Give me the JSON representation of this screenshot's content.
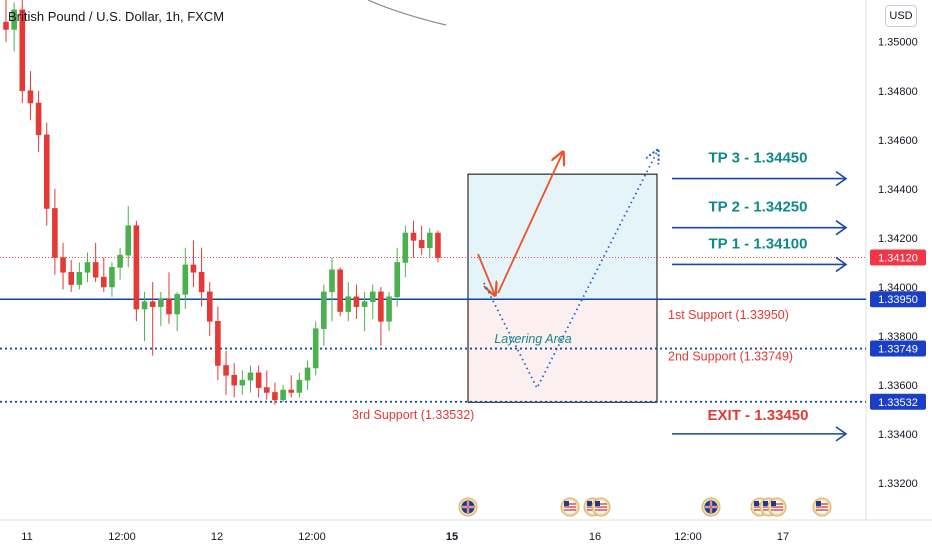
{
  "header": {
    "title": "British Pound / U.S. Dollar, 1h, FXCM",
    "currency_button": "USD"
  },
  "colors": {
    "up": "#4caf50",
    "down": "#e53935",
    "support_line": "#0d47a1",
    "arrow_blue": "#1a47a8",
    "tp_text": "#0f8a8a",
    "exit_text": "#e53935",
    "price_tag": "#1a3fc4",
    "last_price_tag": "#f23645"
  },
  "chart_data": {
    "type": "candlestick",
    "y_ticks": [
      "1.35000",
      "1.34800",
      "1.34600",
      "1.34400",
      "1.34200",
      "1.34000",
      "1.33800",
      "1.33600",
      "1.33400",
      "1.33200"
    ],
    "ylim": [
      1.3305,
      1.3517
    ],
    "x_ticks": [
      {
        "label": "11",
        "bold": false
      },
      {
        "label": "12:00",
        "bold": false
      },
      {
        "label": "12",
        "bold": false
      },
      {
        "label": "12:00",
        "bold": false
      },
      {
        "label": "15",
        "bold": true
      },
      {
        "label": "16",
        "bold": false
      },
      {
        "label": "12:00",
        "bold": false
      },
      {
        "label": "17",
        "bold": false
      }
    ],
    "price_tags": [
      {
        "label": "1.34120",
        "value": 1.3412,
        "kind": "last"
      },
      {
        "label": "1.33950",
        "value": 1.3395,
        "kind": "level"
      },
      {
        "label": "1.33749",
        "value": 1.33749,
        "kind": "level"
      },
      {
        "label": "1.33532",
        "value": 1.33532,
        "kind": "level"
      }
    ],
    "levels": [
      {
        "value": 1.3395,
        "style": "solid"
      },
      {
        "value": 1.33749,
        "style": "dotted"
      },
      {
        "value": 1.33532,
        "style": "dotted"
      },
      {
        "value": 1.3412,
        "style": "last-price"
      }
    ],
    "targets": [
      {
        "label": "TP 3 - 1.34450",
        "value": 1.3445,
        "kind": "tp"
      },
      {
        "label": "TP 2 - 1.34250",
        "value": 1.3425,
        "kind": "tp"
      },
      {
        "label": "TP 1 - 1.34100",
        "value": 1.341,
        "kind": "tp"
      },
      {
        "label": "EXIT - 1.33450",
        "value": 1.3345,
        "kind": "exit"
      }
    ],
    "support_labels": [
      {
        "label": "1st Support (1.33950)",
        "value": 1.3395
      },
      {
        "label": "2nd Support (1.33749)",
        "value": 1.33749
      },
      {
        "label": "3rd Support (1.33532)",
        "value": 1.33532
      }
    ],
    "zone": {
      "label": "Layering Area",
      "top": 1.3446,
      "mid": 1.3395,
      "bottom": 1.3353
    },
    "candles": [
      {
        "o": 1.3508,
        "h": 1.3518,
        "l": 1.35,
        "c": 1.3505
      },
      {
        "o": 1.3505,
        "h": 1.3516,
        "l": 1.3496,
        "c": 1.3513
      },
      {
        "o": 1.3513,
        "h": 1.352,
        "l": 1.3475,
        "c": 1.348
      },
      {
        "o": 1.348,
        "h": 1.3488,
        "l": 1.3468,
        "c": 1.3475
      },
      {
        "o": 1.3475,
        "h": 1.348,
        "l": 1.3455,
        "c": 1.3462
      },
      {
        "o": 1.3462,
        "h": 1.3467,
        "l": 1.3425,
        "c": 1.3432
      },
      {
        "o": 1.3432,
        "h": 1.344,
        "l": 1.3405,
        "c": 1.3412
      },
      {
        "o": 1.3412,
        "h": 1.3418,
        "l": 1.3399,
        "c": 1.3406
      },
      {
        "o": 1.3406,
        "h": 1.3411,
        "l": 1.3398,
        "c": 1.3401
      },
      {
        "o": 1.3401,
        "h": 1.341,
        "l": 1.3399,
        "c": 1.3406
      },
      {
        "o": 1.3406,
        "h": 1.3414,
        "l": 1.3402,
        "c": 1.341
      },
      {
        "o": 1.341,
        "h": 1.3418,
        "l": 1.3402,
        "c": 1.3404
      },
      {
        "o": 1.3404,
        "h": 1.3412,
        "l": 1.3398,
        "c": 1.34
      },
      {
        "o": 1.34,
        "h": 1.341,
        "l": 1.3396,
        "c": 1.3408
      },
      {
        "o": 1.3408,
        "h": 1.3416,
        "l": 1.3403,
        "c": 1.3413
      },
      {
        "o": 1.3413,
        "h": 1.3433,
        "l": 1.3408,
        "c": 1.3425
      },
      {
        "o": 1.3425,
        "h": 1.3427,
        "l": 1.3386,
        "c": 1.3391
      },
      {
        "o": 1.3391,
        "h": 1.3398,
        "l": 1.3378,
        "c": 1.3394
      },
      {
        "o": 1.3394,
        "h": 1.3402,
        "l": 1.3372,
        "c": 1.3392
      },
      {
        "o": 1.3392,
        "h": 1.3398,
        "l": 1.3384,
        "c": 1.3395
      },
      {
        "o": 1.3395,
        "h": 1.3406,
        "l": 1.3385,
        "c": 1.3389
      },
      {
        "o": 1.3389,
        "h": 1.3398,
        "l": 1.3382,
        "c": 1.3397
      },
      {
        "o": 1.3397,
        "h": 1.3416,
        "l": 1.3391,
        "c": 1.3409
      },
      {
        "o": 1.3409,
        "h": 1.3419,
        "l": 1.34,
        "c": 1.3406
      },
      {
        "o": 1.3406,
        "h": 1.3416,
        "l": 1.3392,
        "c": 1.3398
      },
      {
        "o": 1.3398,
        "h": 1.3402,
        "l": 1.338,
        "c": 1.3386
      },
      {
        "o": 1.3386,
        "h": 1.3392,
        "l": 1.3362,
        "c": 1.3368
      },
      {
        "o": 1.3368,
        "h": 1.3374,
        "l": 1.3356,
        "c": 1.3364
      },
      {
        "o": 1.3364,
        "h": 1.3369,
        "l": 1.3355,
        "c": 1.336
      },
      {
        "o": 1.336,
        "h": 1.3366,
        "l": 1.3356,
        "c": 1.3362
      },
      {
        "o": 1.3362,
        "h": 1.3368,
        "l": 1.3357,
        "c": 1.3365
      },
      {
        "o": 1.3365,
        "h": 1.3368,
        "l": 1.3355,
        "c": 1.3359
      },
      {
        "o": 1.3359,
        "h": 1.3366,
        "l": 1.3354,
        "c": 1.3357
      },
      {
        "o": 1.3357,
        "h": 1.3361,
        "l": 1.3352,
        "c": 1.3354
      },
      {
        "o": 1.3354,
        "h": 1.336,
        "l": 1.3353,
        "c": 1.3358
      },
      {
        "o": 1.3358,
        "h": 1.3364,
        "l": 1.3355,
        "c": 1.3357
      },
      {
        "o": 1.3357,
        "h": 1.3365,
        "l": 1.3355,
        "c": 1.3362
      },
      {
        "o": 1.3362,
        "h": 1.337,
        "l": 1.3358,
        "c": 1.3367
      },
      {
        "o": 1.3367,
        "h": 1.3386,
        "l": 1.3364,
        "c": 1.3383
      },
      {
        "o": 1.3383,
        "h": 1.3401,
        "l": 1.3376,
        "c": 1.3398
      },
      {
        "o": 1.3398,
        "h": 1.3412,
        "l": 1.3386,
        "c": 1.3407
      },
      {
        "o": 1.3407,
        "h": 1.3408,
        "l": 1.3388,
        "c": 1.339
      },
      {
        "o": 1.339,
        "h": 1.3402,
        "l": 1.3386,
        "c": 1.3396
      },
      {
        "o": 1.3396,
        "h": 1.3401,
        "l": 1.3387,
        "c": 1.3392
      },
      {
        "o": 1.3392,
        "h": 1.3398,
        "l": 1.3382,
        "c": 1.3394
      },
      {
        "o": 1.3394,
        "h": 1.3401,
        "l": 1.3387,
        "c": 1.3398
      },
      {
        "o": 1.3398,
        "h": 1.34,
        "l": 1.3376,
        "c": 1.3386
      },
      {
        "o": 1.3386,
        "h": 1.3398,
        "l": 1.3382,
        "c": 1.3396
      },
      {
        "o": 1.3396,
        "h": 1.3416,
        "l": 1.3392,
        "c": 1.341
      },
      {
        "o": 1.341,
        "h": 1.3425,
        "l": 1.3404,
        "c": 1.3422
      },
      {
        "o": 1.3422,
        "h": 1.3427,
        "l": 1.3412,
        "c": 1.3419
      },
      {
        "o": 1.3419,
        "h": 1.3425,
        "l": 1.3413,
        "c": 1.3416
      },
      {
        "o": 1.3416,
        "h": 1.3424,
        "l": 1.3412,
        "c": 1.3422
      },
      {
        "o": 1.3422,
        "h": 1.3423,
        "l": 1.341,
        "c": 1.3412
      }
    ]
  }
}
